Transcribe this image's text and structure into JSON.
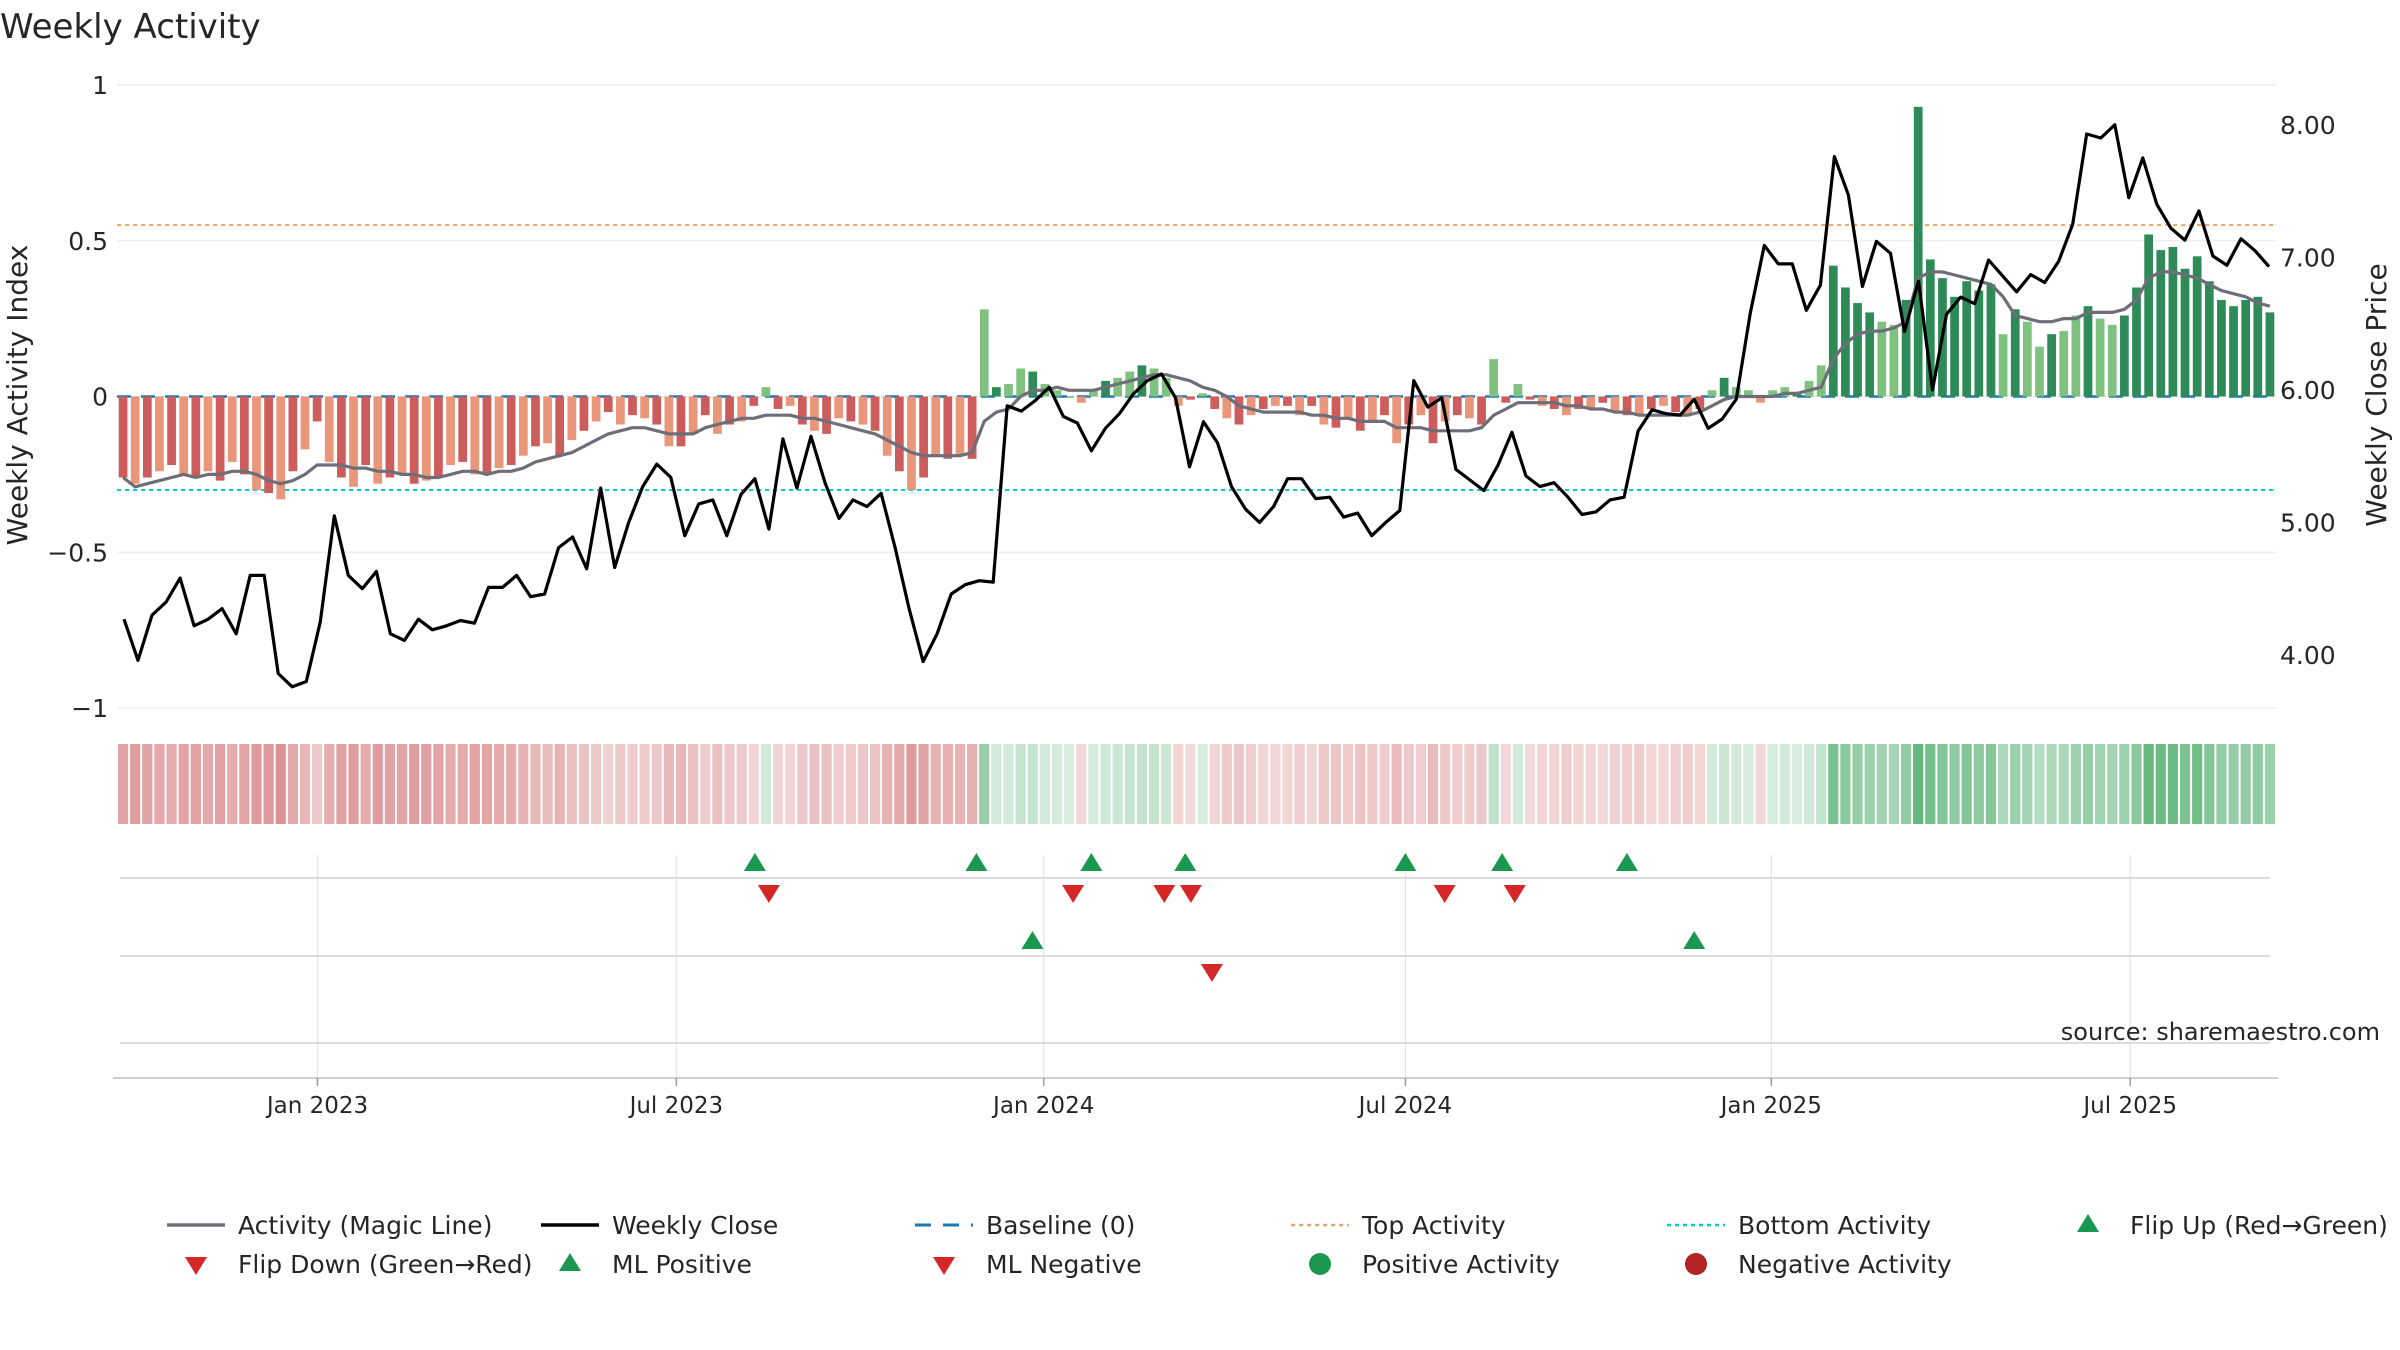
{
  "title": "Weekly Activity",
  "source": "source: sharemaestro.com",
  "colors": {
    "pos_strong": "#2e8b57",
    "pos_light": "#7fc17f",
    "neg_strong": "#cd5c5c",
    "neg_light": "#e9967a",
    "magic": "#6e6e78",
    "close": "#000000",
    "baseline": "#1f77b4",
    "top": "#f4a460",
    "bottom": "#00ced1",
    "flip_up": "#1a9850",
    "flip_down": "#d62728",
    "neg_activity": "#b22222"
  },
  "chart_data": {
    "type": "bar+line",
    "title": "Weekly Activity",
    "y_left_label": "Weekly Activity Index",
    "y_right_label": "Weekly Close Price",
    "y_left_range": [
      -1,
      1
    ],
    "y_right_range": [
      3.6,
      8.3
    ],
    "y_left_ticks": [
      {
        "value": 1,
        "label": "1"
      },
      {
        "value": 0.5,
        "label": "0.5"
      },
      {
        "value": 0,
        "label": "0"
      },
      {
        "value": -0.5,
        "label": "−0.5"
      },
      {
        "value": -1,
        "label": "−1"
      }
    ],
    "y_right_ticks": [
      {
        "value": 8,
        "label": "8.00"
      },
      {
        "value": 7,
        "label": "7.00"
      },
      {
        "value": 6,
        "label": "6.00"
      },
      {
        "value": 5,
        "label": "5.00"
      },
      {
        "value": 4,
        "label": "4.00"
      }
    ],
    "x_week_index_range": [
      0,
      154
    ],
    "x_ticks": [
      {
        "week": 14.3,
        "label": "Jan 2023"
      },
      {
        "week": 39.9,
        "label": "Jul 2023"
      },
      {
        "week": 66.1,
        "label": "Jan 2024"
      },
      {
        "week": 91.9,
        "label": "Jul 2024"
      },
      {
        "week": 118,
        "label": "Jan 2025"
      },
      {
        "week": 143.6,
        "label": "Jul 2025"
      }
    ],
    "top_activity": 0.55,
    "bottom_activity": -0.3,
    "baseline": 0,
    "activity": [
      -0.26,
      -0.28,
      -0.26,
      -0.24,
      -0.22,
      -0.25,
      -0.26,
      -0.24,
      -0.27,
      -0.21,
      -0.25,
      -0.3,
      -0.31,
      -0.33,
      -0.24,
      -0.17,
      -0.08,
      -0.21,
      -0.26,
      -0.29,
      -0.22,
      -0.28,
      -0.26,
      -0.25,
      -0.28,
      -0.27,
      -0.26,
      -0.22,
      -0.21,
      -0.25,
      -0.25,
      -0.23,
      -0.22,
      -0.19,
      -0.16,
      -0.15,
      -0.19,
      -0.14,
      -0.11,
      -0.08,
      -0.05,
      -0.09,
      -0.06,
      -0.07,
      -0.09,
      -0.16,
      -0.16,
      -0.12,
      -0.06,
      -0.12,
      -0.09,
      -0.08,
      -0.03,
      0.03,
      -0.04,
      -0.03,
      -0.09,
      -0.11,
      -0.12,
      -0.07,
      -0.08,
      -0.09,
      -0.11,
      -0.19,
      -0.24,
      -0.3,
      -0.26,
      -0.19,
      -0.2,
      -0.19,
      -0.2,
      0.28,
      0.03,
      0.04,
      0.09,
      0.08,
      0.04,
      0.02,
      0.0,
      -0.02,
      0.02,
      0.05,
      0.06,
      0.08,
      0.1,
      0.09,
      0.06,
      -0.03,
      -0.01,
      0.01,
      -0.04,
      -0.07,
      -0.09,
      -0.06,
      -0.04,
      -0.03,
      -0.03,
      -0.06,
      -0.03,
      -0.09,
      -0.1,
      -0.07,
      -0.11,
      -0.08,
      -0.06,
      -0.15,
      -0.09,
      -0.06,
      -0.15,
      -0.08,
      -0.06,
      -0.07,
      -0.09,
      0.12,
      -0.02,
      0.04,
      -0.01,
      -0.03,
      -0.04,
      -0.06,
      -0.04,
      -0.04,
      -0.02,
      -0.05,
      -0.06,
      -0.06,
      -0.04,
      -0.03,
      -0.05,
      -0.06,
      -0.04,
      0.02,
      0.06,
      0.03,
      0.02,
      -0.02,
      0.02,
      0.03,
      0.01,
      0.05,
      0.1,
      0.42,
      0.35,
      0.3,
      0.27,
      0.24,
      0.23,
      0.31,
      0.93,
      0.44,
      0.38,
      0.32,
      0.37,
      0.34,
      0.36,
      0.2,
      0.28,
      0.24,
      0.16,
      0.2,
      0.21,
      0.26,
      0.29,
      0.25,
      0.23,
      0.26,
      0.35,
      0.52,
      0.47,
      0.48,
      0.41,
      0.45,
      0.37,
      0.31,
      0.29,
      0.31,
      0.32,
      0.27
    ],
    "magic_line": [
      -0.26,
      -0.29,
      -0.28,
      -0.27,
      -0.26,
      -0.25,
      -0.26,
      -0.25,
      -0.25,
      -0.24,
      -0.24,
      -0.25,
      -0.27,
      -0.28,
      -0.27,
      -0.25,
      -0.22,
      -0.22,
      -0.22,
      -0.23,
      -0.23,
      -0.24,
      -0.24,
      -0.25,
      -0.25,
      -0.26,
      -0.26,
      -0.25,
      -0.24,
      -0.24,
      -0.25,
      -0.24,
      -0.24,
      -0.23,
      -0.21,
      -0.2,
      -0.19,
      -0.18,
      -0.16,
      -0.14,
      -0.12,
      -0.11,
      -0.1,
      -0.1,
      -0.11,
      -0.12,
      -0.12,
      -0.12,
      -0.1,
      -0.09,
      -0.08,
      -0.07,
      -0.07,
      -0.06,
      -0.06,
      -0.06,
      -0.07,
      -0.07,
      -0.08,
      -0.09,
      -0.1,
      -0.11,
      -0.12,
      -0.14,
      -0.16,
      -0.18,
      -0.19,
      -0.19,
      -0.19,
      -0.19,
      -0.18,
      -0.08,
      -0.05,
      -0.04,
      0.0,
      0.02,
      0.02,
      0.03,
      0.02,
      0.02,
      0.02,
      0.03,
      0.04,
      0.05,
      0.06,
      0.07,
      0.07,
      0.06,
      0.05,
      0.03,
      0.02,
      0.0,
      -0.03,
      -0.04,
      -0.05,
      -0.05,
      -0.05,
      -0.05,
      -0.06,
      -0.06,
      -0.07,
      -0.07,
      -0.08,
      -0.08,
      -0.08,
      -0.1,
      -0.1,
      -0.1,
      -0.11,
      -0.11,
      -0.11,
      -0.11,
      -0.1,
      -0.06,
      -0.04,
      -0.02,
      -0.02,
      -0.02,
      -0.02,
      -0.03,
      -0.03,
      -0.04,
      -0.04,
      -0.05,
      -0.05,
      -0.06,
      -0.06,
      -0.06,
      -0.06,
      -0.06,
      -0.05,
      -0.03,
      -0.01,
      0.0,
      0.0,
      0.0,
      0.0,
      0.01,
      0.01,
      0.02,
      0.03,
      0.12,
      0.17,
      0.2,
      0.21,
      0.21,
      0.22,
      0.24,
      0.38,
      0.4,
      0.4,
      0.39,
      0.38,
      0.37,
      0.36,
      0.32,
      0.26,
      0.25,
      0.24,
      0.24,
      0.25,
      0.25,
      0.27,
      0.27,
      0.27,
      0.28,
      0.31,
      0.38,
      0.4,
      0.4,
      0.39,
      0.38,
      0.36,
      0.34,
      0.33,
      0.32,
      0.3,
      0.29
    ],
    "weekly_close": [
      4.27,
      3.96,
      4.3,
      4.4,
      4.58,
      4.22,
      4.27,
      4.35,
      4.16,
      4.6,
      4.6,
      3.86,
      3.76,
      3.8,
      4.25,
      5.05,
      4.6,
      4.5,
      4.63,
      4.16,
      4.11,
      4.27,
      4.19,
      4.22,
      4.26,
      4.24,
      4.51,
      4.51,
      4.6,
      4.44,
      4.46,
      4.81,
      4.89,
      4.65,
      5.26,
      4.66,
      5.0,
      5.27,
      5.44,
      5.34,
      4.9,
      5.14,
      5.17,
      4.9,
      5.21,
      5.33,
      4.95,
      5.63,
      5.26,
      5.65,
      5.3,
      5.03,
      5.17,
      5.12,
      5.22,
      4.81,
      4.35,
      3.95,
      4.16,
      4.46,
      4.53,
      4.56,
      4.55,
      5.88,
      5.84,
      5.92,
      6.02,
      5.8,
      5.75,
      5.54,
      5.71,
      5.82,
      5.97,
      6.07,
      6.12,
      5.94,
      5.42,
      5.76,
      5.6,
      5.27,
      5.1,
      5.0,
      5.12,
      5.33,
      5.33,
      5.18,
      5.19,
      5.04,
      5.07,
      4.9,
      5.0,
      5.09,
      6.07,
      5.87,
      5.94,
      5.4,
      5.32,
      5.24,
      5.43,
      5.68,
      5.35,
      5.27,
      5.3,
      5.19,
      5.06,
      5.08,
      5.17,
      5.19,
      5.69,
      5.85,
      5.82,
      5.81,
      5.93,
      5.71,
      5.78,
      5.93,
      6.58,
      7.09,
      6.95,
      6.95,
      6.6,
      6.79,
      7.76,
      7.47,
      6.78,
      7.12,
      7.03,
      6.44,
      6.82,
      6.0,
      6.57,
      6.7,
      6.65,
      6.98,
      6.86,
      6.74,
      6.87,
      6.81,
      6.97,
      7.25,
      7.93,
      7.9,
      8.0,
      7.45,
      7.75,
      7.4,
      7.22,
      7.13,
      7.35,
      7.01,
      6.94,
      7.14,
      7.05,
      6.93
    ],
    "heat_strip": "weekly color intensity band mirroring activity index (red = negative, green = positive)",
    "flip_up_weeks": [
      45.5,
      61.3,
      69.5,
      76.2,
      91.9,
      98.8,
      107.7
    ],
    "flip_down_weeks": [
      46.5,
      68.2,
      74.7,
      76.6,
      94.7,
      99.7
    ],
    "ml_positive_weeks": [
      65.3,
      112.5
    ],
    "ml_negative_weeks": [
      78.1
    ]
  },
  "legend": [
    {
      "key": "magic",
      "label": "Activity (Magic Line)",
      "icon": "grey-line"
    },
    {
      "key": "close",
      "label": "Weekly Close",
      "icon": "black-line"
    },
    {
      "key": "baseline",
      "label": "Baseline (0)",
      "icon": "blue-dashed-line"
    },
    {
      "key": "top",
      "label": "Top Activity",
      "icon": "orange-dotted-line"
    },
    {
      "key": "bottom",
      "label": "Bottom Activity",
      "icon": "cyan-dotted-line"
    },
    {
      "key": "flip_up",
      "label": "Flip Up (Red→Green)",
      "icon": "green-up-triangle"
    },
    {
      "key": "flip_down",
      "label": "Flip Down (Green→Red)",
      "icon": "red-down-triangle"
    },
    {
      "key": "ml_pos",
      "label": "ML Positive",
      "icon": "green-up-triangle"
    },
    {
      "key": "ml_neg",
      "label": "ML Negative",
      "icon": "red-down-triangle"
    },
    {
      "key": "pos_act",
      "label": "Positive Activity",
      "icon": "green-dot"
    },
    {
      "key": "neg_act",
      "label": "Negative Activity",
      "icon": "red-dot"
    }
  ]
}
